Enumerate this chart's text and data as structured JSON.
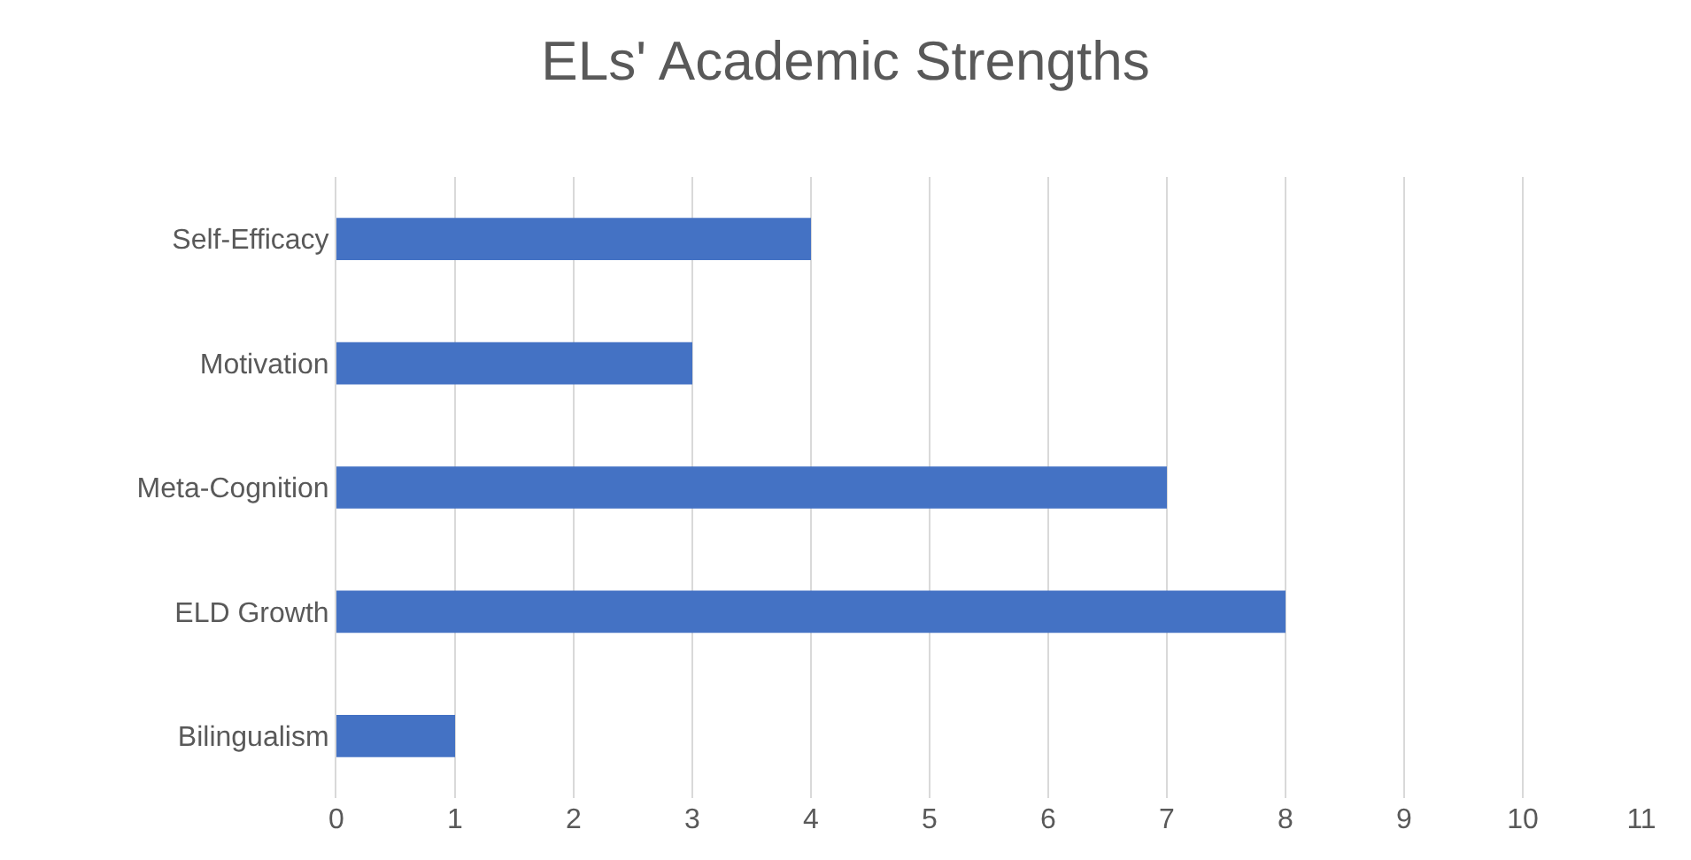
{
  "chart_data": {
    "type": "bar",
    "orientation": "horizontal",
    "title": "ELs' Academic Strengths",
    "categories": [
      "Self-Efficacy",
      "Motivation",
      "Meta-Cognition",
      "ELD Growth",
      "Bilingualism"
    ],
    "values": [
      4,
      3,
      7,
      8,
      1
    ],
    "color": "#4472c4",
    "xlim": [
      0,
      11
    ],
    "xticks": [
      0,
      1,
      2,
      3,
      4,
      5,
      6,
      7,
      8,
      9,
      10,
      11
    ],
    "grid": "x"
  }
}
